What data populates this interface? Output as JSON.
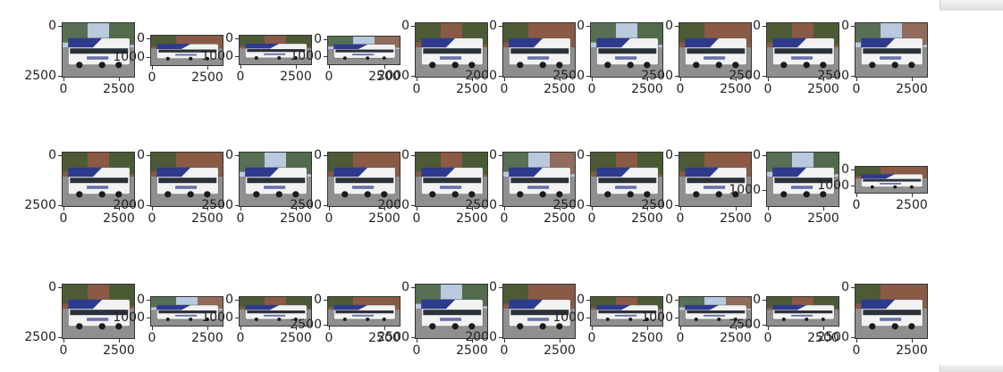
{
  "figure": {
    "rows": [
      {
        "cells": [
          {
            "yticks": [
              "0",
              "2500"
            ],
            "xticks": [
              "0",
              "2500"
            ],
            "y_max": 2500,
            "x_max": 2500
          },
          {
            "yticks": [
              "0",
              "1000"
            ],
            "xticks": [
              "0",
              "2500"
            ],
            "y_max": 1000,
            "x_max": 2500
          },
          {
            "yticks": [
              "0",
              "1000"
            ],
            "xticks": [
              "0",
              "2500"
            ],
            "y_max": 1000,
            "x_max": 2500
          },
          {
            "yticks": [
              "0",
              "1000"
            ],
            "xticks": [
              "0",
              "2500"
            ],
            "y_max": 1000,
            "x_max": 2500
          },
          {
            "yticks": [
              "0",
              "2000"
            ],
            "xticks": [
              "0",
              "2500"
            ],
            "y_max": 2000,
            "x_max": 2500
          },
          {
            "yticks": [
              "0",
              "2000"
            ],
            "xticks": [
              "0",
              "2500"
            ],
            "y_max": 2000,
            "x_max": 2500
          },
          {
            "yticks": [
              "0",
              "2500"
            ],
            "xticks": [
              "0",
              "2500"
            ],
            "y_max": 2500,
            "x_max": 2500
          },
          {
            "yticks": [
              "0",
              "2500"
            ],
            "xticks": [
              "0",
              "2500"
            ],
            "y_max": 2500,
            "x_max": 2500
          },
          {
            "yticks": [
              "0",
              "2500"
            ],
            "xticks": [
              "0",
              "2500"
            ],
            "y_max": 2500,
            "x_max": 2500
          },
          {
            "yticks": [
              "0",
              "2500"
            ],
            "xticks": [
              "0",
              "2500"
            ],
            "y_max": 2500,
            "x_max": 2500
          }
        ]
      },
      {
        "cells": [
          {
            "yticks": [
              "0",
              "2500"
            ],
            "xticks": [
              "0",
              "2500"
            ],
            "y_max": 2500,
            "x_max": 2500
          },
          {
            "yticks": [
              "0",
              "2000"
            ],
            "xticks": [
              "0",
              "2500"
            ],
            "y_max": 2000,
            "x_max": 2500
          },
          {
            "yticks": [
              "0",
              "2500"
            ],
            "xticks": [
              "0",
              "2500"
            ],
            "y_max": 2500,
            "x_max": 2500
          },
          {
            "yticks": [
              "0",
              "2500"
            ],
            "xticks": [
              "0",
              "2500"
            ],
            "y_max": 2500,
            "x_max": 2500
          },
          {
            "yticks": [
              "0",
              "2000"
            ],
            "xticks": [
              "0",
              "2500"
            ],
            "y_max": 2000,
            "x_max": 2500
          },
          {
            "yticks": [
              "0",
              "2500"
            ],
            "xticks": [
              "0",
              "2500"
            ],
            "y_max": 2500,
            "x_max": 2500
          },
          {
            "yticks": [
              "0",
              "2500"
            ],
            "xticks": [
              "0",
              "2500"
            ],
            "y_max": 2500,
            "x_max": 2500
          },
          {
            "yticks": [
              "0",
              "2500"
            ],
            "xticks": [
              "0",
              "2500"
            ],
            "y_max": 2500,
            "x_max": 2500
          },
          {
            "yticks": [
              "0",
              "1000"
            ],
            "xticks": [
              "0",
              "2500"
            ],
            "y_max": 1000,
            "x_max": 2500
          },
          {
            "yticks": [
              "0",
              "1000"
            ],
            "xticks": [
              "0",
              "2500"
            ],
            "y_max": 1000,
            "x_max": 2500
          }
        ]
      },
      {
        "cells": [
          {
            "yticks": [
              "0",
              "2500"
            ],
            "xticks": [
              "0",
              "2500"
            ],
            "y_max": 2500,
            "x_max": 2500
          },
          {
            "yticks": [
              "0",
              "1000"
            ],
            "xticks": [
              "0",
              "2500"
            ],
            "y_max": 1000,
            "x_max": 2500
          },
          {
            "yticks": [
              "0",
              "1000"
            ],
            "xticks": [
              "0",
              "2500"
            ],
            "y_max": 1000,
            "x_max": 2500
          },
          {
            "yticks": [
              "0",
              "2500"
            ],
            "xticks": [
              "0",
              "2500"
            ],
            "y_max": 2500,
            "x_max": 2500
          },
          {
            "yticks": [
              "0",
              "2500"
            ],
            "xticks": [
              "0",
              "2500"
            ],
            "y_max": 2500,
            "x_max": 2500
          },
          {
            "yticks": [
              "0",
              "2000"
            ],
            "xticks": [
              "0",
              "2500"
            ],
            "y_max": 2000,
            "x_max": 2500
          },
          {
            "yticks": [
              "0",
              "1000"
            ],
            "xticks": [
              "0",
              "2500"
            ],
            "y_max": 1000,
            "x_max": 2500
          },
          {
            "yticks": [
              "0",
              "1000"
            ],
            "xticks": [
              "0",
              "2500"
            ],
            "y_max": 1000,
            "x_max": 2500
          },
          {
            "yticks": [
              "0",
              "2500"
            ],
            "xticks": [
              "0",
              "2500"
            ],
            "y_max": 2500,
            "x_max": 2500
          },
          {
            "yticks": [
              "0",
              "2500"
            ],
            "xticks": [
              "0",
              "2500"
            ],
            "y_max": 2500,
            "x_max": 2500
          }
        ]
      }
    ]
  },
  "palette": {
    "bus_blue": "#2e3a8c",
    "bus_white": "#f2f2f2",
    "sky": "#b9c9de",
    "street": "#8f8f8f",
    "trees": "#3f5a32",
    "building": "#8a5a44",
    "window": "#2b3138",
    "axis": "#333333"
  }
}
